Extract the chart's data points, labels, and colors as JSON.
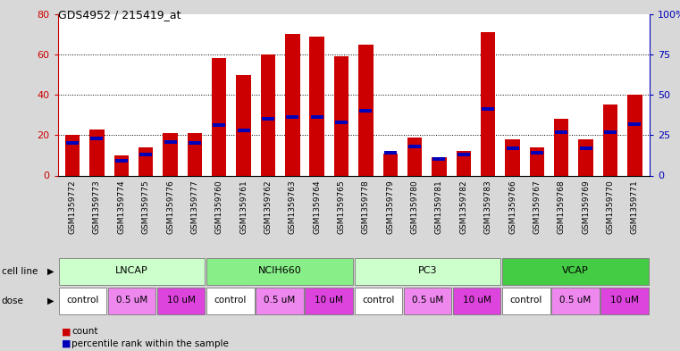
{
  "title": "GDS4952 / 215419_at",
  "samples": [
    "GSM1359772",
    "GSM1359773",
    "GSM1359774",
    "GSM1359775",
    "GSM1359776",
    "GSM1359777",
    "GSM1359760",
    "GSM1359761",
    "GSM1359762",
    "GSM1359763",
    "GSM1359764",
    "GSM1359765",
    "GSM1359778",
    "GSM1359779",
    "GSM1359780",
    "GSM1359781",
    "GSM1359782",
    "GSM1359783",
    "GSM1359766",
    "GSM1359767",
    "GSM1359768",
    "GSM1359769",
    "GSM1359770",
    "GSM1359771"
  ],
  "counts": [
    20,
    23,
    10,
    14,
    21,
    21,
    58,
    50,
    60,
    70,
    69,
    59,
    65,
    11,
    19,
    9,
    12,
    71,
    18,
    14,
    28,
    18,
    35,
    40
  ],
  "percentiles": [
    20,
    23,
    9,
    13,
    21,
    20,
    31,
    28,
    35,
    36,
    36,
    33,
    40,
    14,
    18,
    10,
    13,
    41,
    17,
    14,
    27,
    17,
    27,
    32
  ],
  "red_color": "#cc0000",
  "blue_color": "#0000bb",
  "left_ylim": [
    0,
    80
  ],
  "right_ylim": [
    0,
    100
  ],
  "left_yticks": [
    0,
    20,
    40,
    60,
    80
  ],
  "right_yticks": [
    0,
    25,
    50,
    75,
    100
  ],
  "right_yticklabels": [
    "0",
    "25",
    "50",
    "75",
    "100%"
  ],
  "cell_lines": [
    {
      "label": "LNCAP",
      "start": 0,
      "end": 6,
      "color": "#ccffcc"
    },
    {
      "label": "NCIH660",
      "start": 6,
      "end": 12,
      "color": "#88ee88"
    },
    {
      "label": "PC3",
      "start": 12,
      "end": 18,
      "color": "#ccffcc"
    },
    {
      "label": "VCAP",
      "start": 18,
      "end": 24,
      "color": "#44cc44"
    }
  ],
  "dose_spans": [
    {
      "label": "control",
      "start": 0,
      "end": 2,
      "color": "#ffffff"
    },
    {
      "label": "0.5 uM",
      "start": 2,
      "end": 4,
      "color": "#ee88ee"
    },
    {
      "label": "10 uM",
      "start": 4,
      "end": 6,
      "color": "#dd44dd"
    },
    {
      "label": "control",
      "start": 6,
      "end": 8,
      "color": "#ffffff"
    },
    {
      "label": "0.5 uM",
      "start": 8,
      "end": 10,
      "color": "#ee88ee"
    },
    {
      "label": "10 uM",
      "start": 10,
      "end": 12,
      "color": "#dd44dd"
    },
    {
      "label": "control",
      "start": 12,
      "end": 14,
      "color": "#ffffff"
    },
    {
      "label": "0.5 uM",
      "start": 14,
      "end": 16,
      "color": "#ee88ee"
    },
    {
      "label": "10 uM",
      "start": 16,
      "end": 18,
      "color": "#dd44dd"
    },
    {
      "label": "control",
      "start": 18,
      "end": 20,
      "color": "#ffffff"
    },
    {
      "label": "0.5 uM",
      "start": 20,
      "end": 22,
      "color": "#ee88ee"
    },
    {
      "label": "10 uM",
      "start": 22,
      "end": 24,
      "color": "#dd44dd"
    }
  ],
  "bar_width": 0.6,
  "bg_color": "#d8d8d8",
  "plot_bg": "#ffffff",
  "sample_label_bg": "#cccccc",
  "cell_line_label": "cell line",
  "dose_label": "dose",
  "legend_count": "count",
  "legend_percentile": "percentile rank within the sample"
}
